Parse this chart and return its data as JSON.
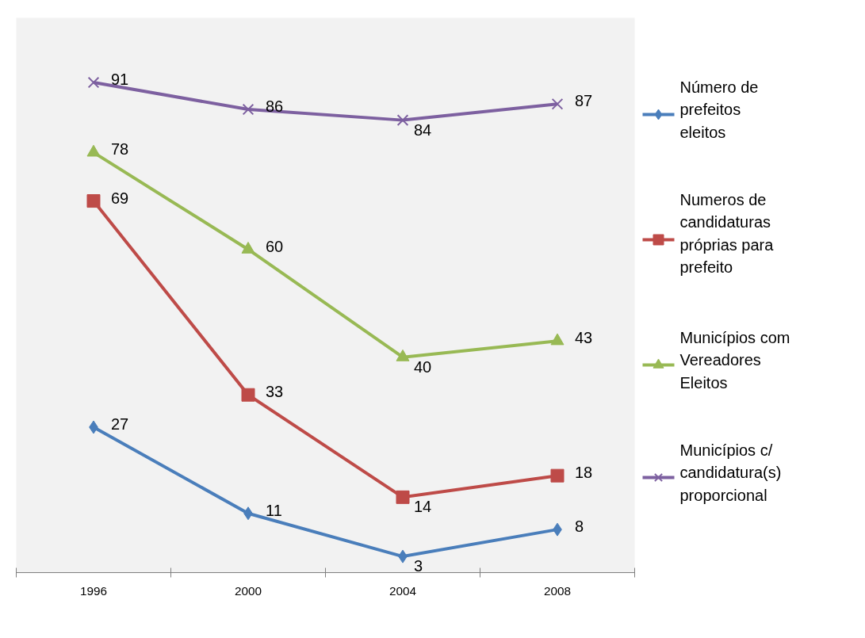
{
  "chart_data": {
    "type": "line",
    "categories": [
      "1996",
      "2000",
      "2004",
      "2008"
    ],
    "series": [
      {
        "name": "Número de prefeitos eleitos",
        "color": "#4a7ebb",
        "marker": "diamond",
        "values": [
          27,
          11,
          3,
          8
        ]
      },
      {
        "name": "Numeros de candidaturas próprias para prefeito",
        "color": "#be4b48",
        "marker": "square",
        "values": [
          69,
          33,
          14,
          18
        ]
      },
      {
        "name": "Municípios com Vereadores Eleitos",
        "color": "#98b954",
        "marker": "triangle",
        "values": [
          78,
          60,
          40,
          43
        ]
      },
      {
        "name": "Municípios c/ candidatura(s) proporcional",
        "color": "#7d60a0",
        "marker": "cross",
        "values": [
          91,
          86,
          84,
          87
        ]
      }
    ],
    "ylim": [
      0,
      103
    ],
    "tick_labels": "x",
    "grid": false,
    "legend": "right",
    "data_labels": true
  }
}
